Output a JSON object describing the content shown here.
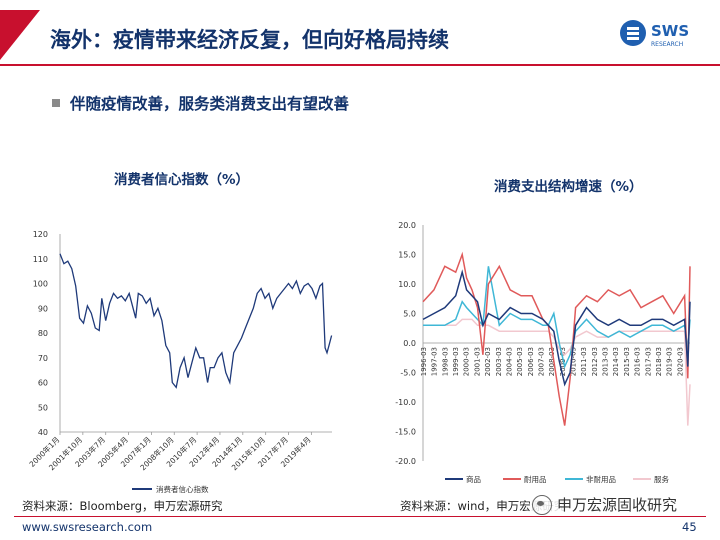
{
  "slide": {
    "title": "海外：疫情带来经济反复，但向好格局持续",
    "bullet": "伴随疫情改善，服务类消费支出有望改善",
    "logo_text": "SWS",
    "logo_subtext": "RESEARCH",
    "source_left": "资料来源：Bloomberg，申万宏源研究",
    "source_right": "资料来源：wind，申万宏源研究",
    "watermark": "申万宏源固收研究",
    "footer_url": "www.swsresearch.com",
    "page_number": "45",
    "colors": {
      "title": "#13336b",
      "accent": "#c8102e"
    }
  },
  "chart_data": [
    {
      "type": "line",
      "title": "消费者信心指数（%）",
      "ylim": [
        40,
        120
      ],
      "yticks": [
        40,
        50,
        60,
        70,
        80,
        90,
        100,
        110,
        120
      ],
      "xlim": [
        2000.0,
        2020.83
      ],
      "xtick_labels": [
        "2000年1月",
        "2001年10月",
        "2003年7月",
        "2005年4月",
        "2007年1月",
        "2008年10月",
        "2010年7月",
        "2012年4月",
        "2014年1月",
        "2015年10月",
        "2017年7月",
        "2019年4月"
      ],
      "xtick_positions": [
        2000.0,
        2001.75,
        2003.5,
        2005.25,
        2007.0,
        2008.75,
        2010.5,
        2012.25,
        2014.0,
        2015.75,
        2017.5,
        2019.25
      ],
      "legend": "bottom",
      "series": [
        {
          "name": "消费者信心指数",
          "color": "#1f3a7a",
          "x": [
            2000.0,
            2000.3,
            2000.6,
            2000.9,
            2001.2,
            2001.5,
            2001.8,
            2002.1,
            2002.4,
            2002.7,
            2003.0,
            2003.2,
            2003.5,
            2003.8,
            2004.1,
            2004.4,
            2004.7,
            2005.0,
            2005.3,
            2005.6,
            2005.8,
            2006.0,
            2006.3,
            2006.6,
            2006.9,
            2007.2,
            2007.5,
            2007.8,
            2008.1,
            2008.4,
            2008.6,
            2008.9,
            2009.2,
            2009.5,
            2009.8,
            2010.1,
            2010.4,
            2010.7,
            2011.0,
            2011.3,
            2011.5,
            2011.8,
            2012.1,
            2012.4,
            2012.7,
            2013.0,
            2013.3,
            2013.6,
            2013.9,
            2014.2,
            2014.5,
            2014.8,
            2015.1,
            2015.4,
            2015.7,
            2016.0,
            2016.3,
            2016.6,
            2016.9,
            2017.2,
            2017.5,
            2017.8,
            2018.1,
            2018.4,
            2018.7,
            2019.0,
            2019.3,
            2019.6,
            2019.9,
            2020.1,
            2020.3,
            2020.45,
            2020.6,
            2020.8
          ],
          "values": [
            112,
            108,
            109,
            106,
            99,
            86,
            84,
            91,
            88,
            82,
            81,
            94,
            85,
            92,
            96,
            94,
            95,
            93,
            96,
            90,
            86,
            96,
            95,
            92,
            94,
            87,
            90,
            85,
            75,
            72,
            60,
            58,
            66,
            70,
            62,
            68,
            74,
            70,
            70,
            60,
            66,
            66,
            70,
            72,
            64,
            60,
            72,
            75,
            78,
            82,
            86,
            90,
            96,
            98,
            94,
            96,
            90,
            94,
            96,
            98,
            100,
            98,
            101,
            96,
            99,
            100,
            98,
            94,
            99,
            100,
            74,
            72,
            75,
            79
          ]
        }
      ]
    },
    {
      "type": "line",
      "title": "消费支出结构增速（%）",
      "ylim": [
        -20,
        20
      ],
      "yticks": [
        -20.0,
        -15.0,
        -10.0,
        -5.0,
        0.0,
        5.0,
        10.0,
        15.0,
        20.0
      ],
      "xlim": [
        1996.0,
        2020.5
      ],
      "xtick_labels": [
        "1996-03",
        "1997-03",
        "1998-03",
        "1999-03",
        "2000-03",
        "2001-03",
        "2002-03",
        "2003-03",
        "2004-03",
        "2005-03",
        "2006-03",
        "2007-03",
        "2008-03",
        "2009-03",
        "2010-03",
        "2011-03",
        "2012-03",
        "2013-03",
        "2014-03",
        "2015-03",
        "2016-03",
        "2017-03",
        "2018-03",
        "2019-03",
        "2020-03"
      ],
      "legend": "bottom",
      "series": [
        {
          "name": "商品",
          "color": "#1f3a7a",
          "x": [
            1996,
            1997,
            1998,
            1999,
            1999.6,
            2000,
            2000.5,
            2001,
            2001.5,
            2002,
            2003,
            2004,
            2005,
            2006,
            2007,
            2007.5,
            2008,
            2008.5,
            2009,
            2009.5,
            2010,
            2011,
            2012,
            2013,
            2014,
            2015,
            2016,
            2017,
            2018,
            2019,
            2020,
            2020.3,
            2020.5
          ],
          "values": [
            4,
            5,
            6,
            8,
            12,
            9,
            8,
            7,
            3,
            5,
            4,
            6,
            5,
            5,
            4,
            3,
            2,
            -3,
            -7,
            -5,
            3,
            6,
            4,
            3,
            4,
            3,
            3,
            4,
            4,
            3,
            4,
            -4,
            7
          ]
        },
        {
          "name": "耐用品",
          "color": "#e05a5a",
          "x": [
            1996,
            1997,
            1998,
            1999,
            1999.6,
            2000,
            2000.5,
            2001,
            2001.5,
            2002,
            2003,
            2004,
            2005,
            2006,
            2007,
            2007.5,
            2008,
            2008.5,
            2009,
            2009.5,
            2010,
            2011,
            2012,
            2013,
            2014,
            2015,
            2016,
            2017,
            2018,
            2019,
            2020,
            2020.3,
            2020.5
          ],
          "values": [
            7,
            9,
            13,
            12,
            15,
            11,
            9,
            6,
            -2,
            10,
            13,
            9,
            8,
            8,
            4,
            3,
            -3,
            -9,
            -14,
            -6,
            6,
            8,
            7,
            9,
            8,
            9,
            6,
            7,
            8,
            5,
            8,
            -6,
            13
          ]
        },
        {
          "name": "非耐用品",
          "color": "#3fb7d6",
          "x": [
            1996,
            1997,
            1998,
            1999,
            1999.6,
            2000,
            2000.5,
            2001,
            2001.5,
            2002,
            2003,
            2004,
            2005,
            2006,
            2007,
            2007.5,
            2008,
            2008.5,
            2009,
            2009.5,
            2010,
            2011,
            2012,
            2013,
            2014,
            2015,
            2016,
            2017,
            2018,
            2019,
            2020,
            2020.3,
            2020.5
          ],
          "values": [
            3,
            3,
            3,
            4,
            7,
            6,
            5,
            4,
            3,
            13,
            3,
            5,
            4,
            4,
            3,
            3,
            5,
            0,
            -4,
            -2,
            2,
            4,
            2,
            1,
            2,
            1,
            2,
            3,
            3,
            2,
            3,
            -1,
            4
          ]
        },
        {
          "name": "服务",
          "color": "#f2c8cf",
          "x": [
            1996,
            1997,
            1998,
            1999,
            1999.6,
            2000,
            2000.5,
            2001,
            2001.5,
            2002,
            2003,
            2004,
            2005,
            2006,
            2007,
            2007.5,
            2008,
            2008.5,
            2009,
            2009.5,
            2010,
            2011,
            2012,
            2013,
            2014,
            2015,
            2016,
            2017,
            2018,
            2019,
            2020,
            2020.3,
            2020.5
          ],
          "values": [
            3,
            3,
            3,
            3,
            4,
            4,
            4,
            3,
            3,
            3,
            2,
            2,
            2,
            2,
            2,
            2,
            1,
            -1,
            -2,
            -1,
            1,
            2,
            1,
            1,
            2,
            2,
            2,
            2,
            2,
            2,
            2,
            -14,
            -7
          ]
        }
      ]
    }
  ]
}
